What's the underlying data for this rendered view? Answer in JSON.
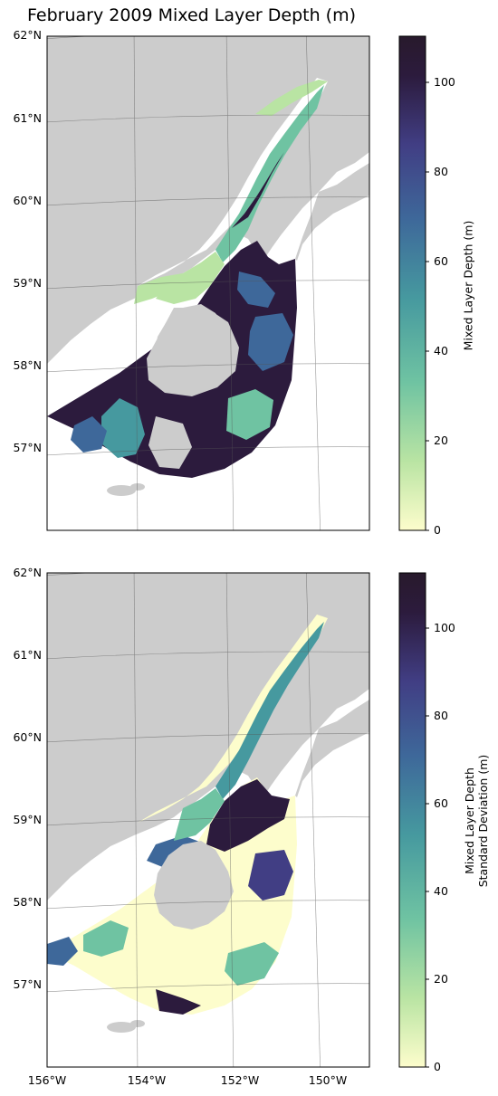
{
  "title": "February 2009 Mixed Layer Depth (m)",
  "colors": {
    "land": "#cccccc",
    "frame": "#000000",
    "colormap": [
      "#fdfdcc",
      "#b9e4a3",
      "#6fc3a2",
      "#46999f",
      "#3e689a",
      "#413e84",
      "#2c1b3d",
      "#281a2c"
    ]
  },
  "panels": [
    {
      "name": "mixed-layer-depth",
      "lat_labels": [
        "62°N",
        "61°N",
        "60°N",
        "59°N",
        "58°N",
        "57°N"
      ],
      "colorbar": {
        "ticks": [
          "0",
          "20",
          "40",
          "60",
          "80",
          "100"
        ],
        "label_lines": [
          "Mixed Layer Depth (m)"
        ]
      }
    },
    {
      "name": "mixed-layer-depth-std",
      "lat_labels": [
        "62°N",
        "61°N",
        "60°N",
        "59°N",
        "58°N",
        "57°N"
      ],
      "lon_labels": [
        "156°W",
        "154°W",
        "152°W",
        "150°W"
      ],
      "colorbar": {
        "ticks": [
          "0",
          "20",
          "40",
          "60",
          "80",
          "100"
        ],
        "label_lines": [
          "Mixed Layer Depth",
          "Standard Deviation (m)"
        ]
      }
    }
  ]
}
